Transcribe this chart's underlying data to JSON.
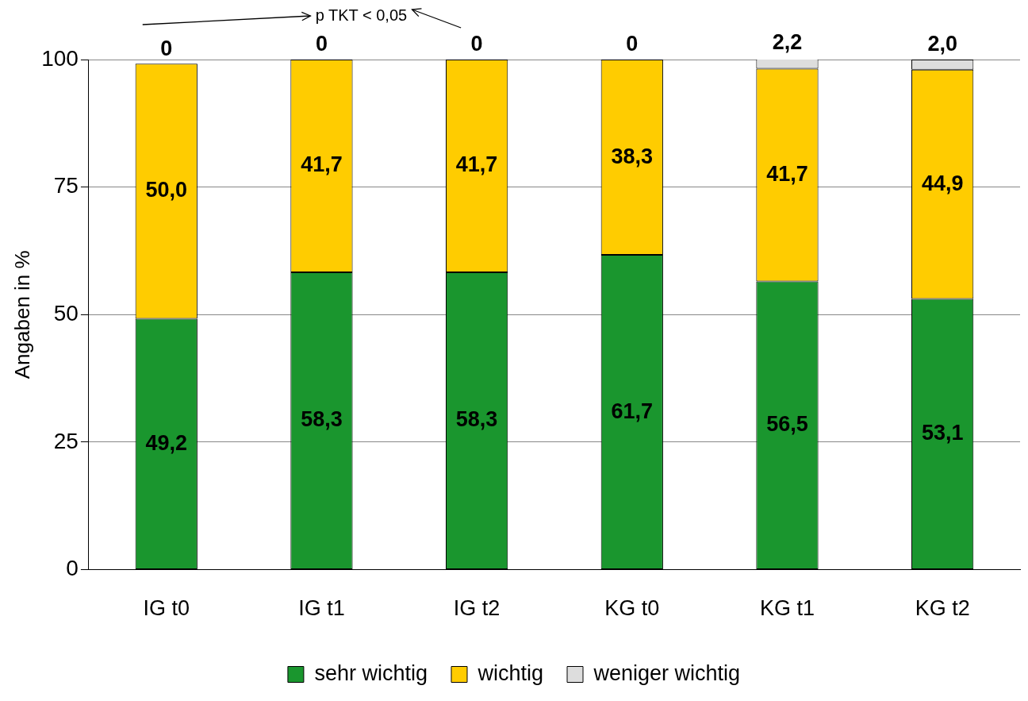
{
  "chart_data": {
    "type": "bar",
    "stacked": true,
    "ylabel": "Angaben in %",
    "categories": [
      "IG t0",
      "IG t1",
      "IG t2",
      "KG t0",
      "KG t1",
      "KG t2"
    ],
    "series": [
      {
        "name": "sehr wichtig",
        "color": "#1a962e",
        "values": [
          49.2,
          58.3,
          58.3,
          61.7,
          56.5,
          53.1
        ],
        "value_labels": [
          "49,2",
          "58,3",
          "58,3",
          "61,7",
          "56,5",
          "53,1"
        ]
      },
      {
        "name": "wichtig",
        "color": "#ffcc00",
        "values": [
          50.0,
          41.7,
          41.7,
          38.3,
          41.7,
          44.9
        ],
        "value_labels": [
          "50,0",
          "41,7",
          "41,7",
          "38,3",
          "41,7",
          "44,9"
        ]
      },
      {
        "name": "weniger wichtig",
        "color": "#dddddd",
        "values": [
          0,
          0,
          0,
          0,
          2.2,
          2.0
        ],
        "value_labels": [
          "0",
          "0",
          "0",
          "0",
          "2,2",
          "2,0"
        ]
      }
    ],
    "ylim": [
      0,
      100
    ],
    "yticks": [
      0,
      25,
      50,
      75,
      100
    ],
    "grid": "y",
    "legend": "bottom",
    "annotations": [
      "p TKT < 0,05"
    ]
  }
}
